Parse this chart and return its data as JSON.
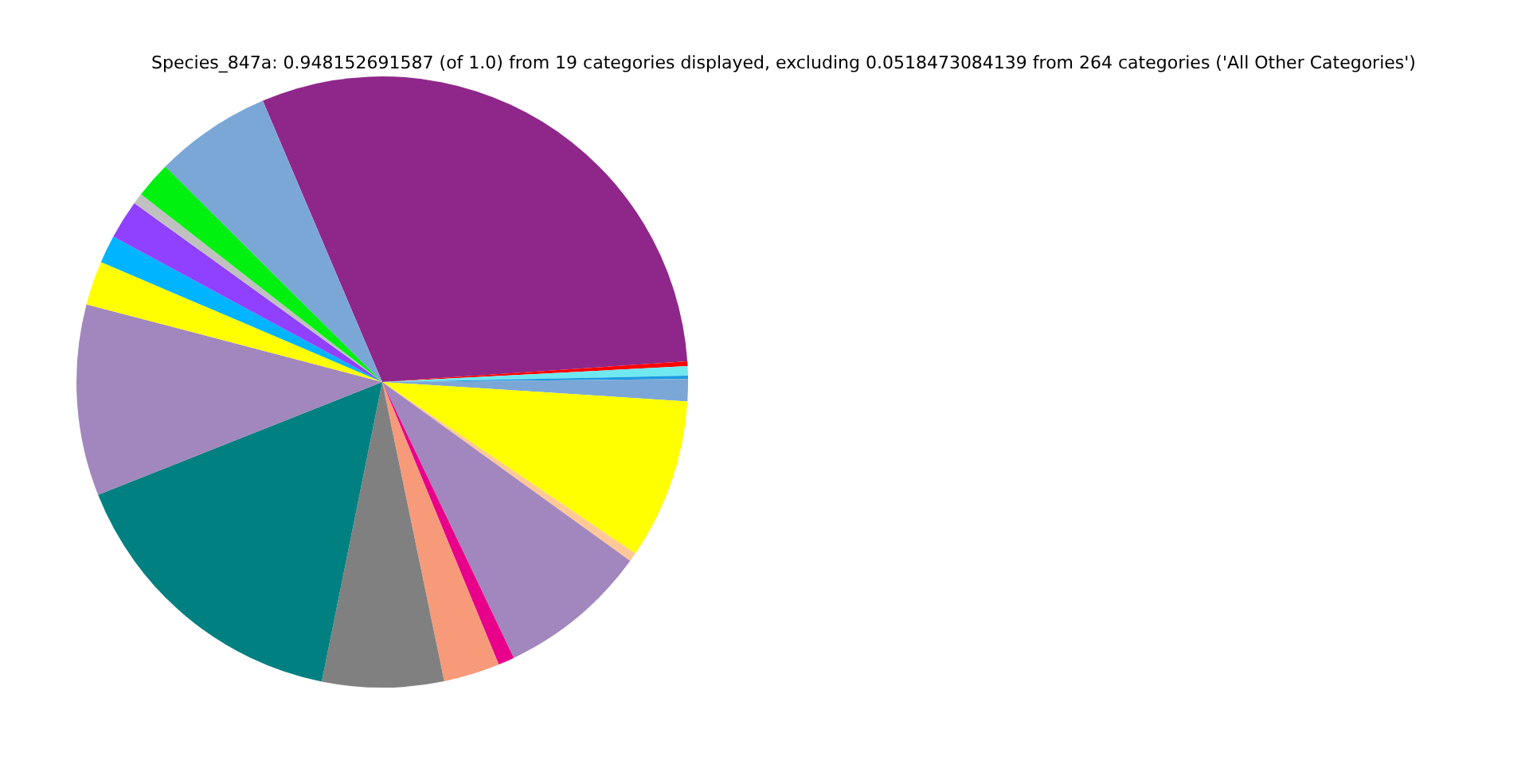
{
  "chart_data": {
    "type": "pie",
    "title": "Species_847a: 0.948152691587 (of 1.0) from 19 categories displayed, excluding 0.0518473084139 from 264 categories ('All Other Categories')",
    "categories": [
      null,
      null,
      null,
      null,
      null,
      null,
      null,
      null,
      null,
      null,
      null,
      null,
      null,
      null,
      null,
      null,
      null,
      null,
      null
    ],
    "values": [
      30.31,
      0.25,
      0.5,
      0.17,
      1.17,
      8.47,
      0.47,
      7.97,
      0.86,
      2.97,
      6.42,
      15.81,
      10.11,
      2.33,
      1.47,
      2.06,
      0.58,
      1.92,
      6.16
    ],
    "colors": [
      "#8f278a",
      "#ff0000",
      "#70e8f0",
      "#1a9ae0",
      "#7ba7d7",
      "#ffff00",
      "#ffc896",
      "#a287be",
      "#e8008a",
      "#f79a7a",
      "#808080",
      "#008080",
      "#a287be",
      "#ffff00",
      "#00b4ff",
      "#9040ff",
      "#c0c0c0",
      "#00f010",
      "#7ba7d7"
    ]
  }
}
